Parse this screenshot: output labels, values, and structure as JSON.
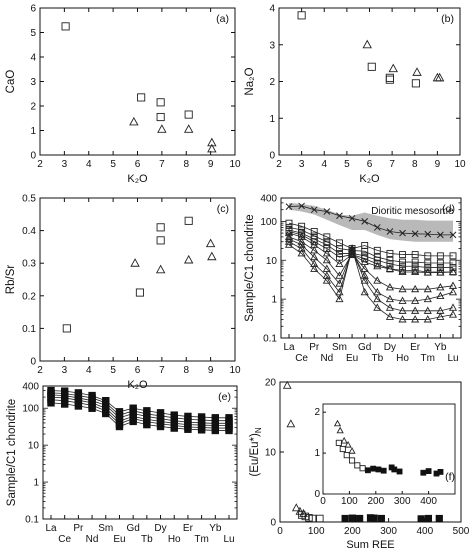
{
  "figure": {
    "title": ""
  },
  "chart_data": [
    {
      "id": "a",
      "type": "scatter",
      "panel_label": "(a)",
      "xlabel": "K₂O",
      "ylabel": "CaO",
      "xlim": [
        2,
        10
      ],
      "ylim": [
        0,
        6
      ],
      "xticks": [
        2,
        3,
        4,
        5,
        6,
        7,
        8,
        9,
        10
      ],
      "yticks": [
        0,
        1,
        2,
        3,
        4,
        5,
        6
      ],
      "series": [
        {
          "marker": "square",
          "points": [
            [
              3.05,
              5.25
            ],
            [
              6.15,
              2.35
            ],
            [
              6.95,
              2.15
            ],
            [
              6.95,
              1.55
            ],
            [
              8.1,
              1.65
            ]
          ]
        },
        {
          "marker": "triangle",
          "points": [
            [
              5.85,
              1.35
            ],
            [
              7.0,
              1.05
            ],
            [
              8.1,
              1.05
            ],
            [
              9.05,
              0.5
            ],
            [
              9.05,
              0.25
            ]
          ]
        }
      ]
    },
    {
      "id": "b",
      "type": "scatter",
      "panel_label": "(b)",
      "xlabel": "K₂O",
      "ylabel": "Na₂O",
      "xlim": [
        2,
        10
      ],
      "ylim": [
        0,
        4
      ],
      "xticks": [
        2,
        3,
        4,
        5,
        6,
        7,
        8,
        9,
        10
      ],
      "yticks": [
        0,
        1,
        2,
        3,
        4
      ],
      "series": [
        {
          "marker": "square",
          "points": [
            [
              3.0,
              3.8
            ],
            [
              6.1,
              2.4
            ],
            [
              6.9,
              2.05
            ],
            [
              6.9,
              2.1
            ],
            [
              8.05,
              1.95
            ]
          ]
        },
        {
          "marker": "triangle",
          "points": [
            [
              5.9,
              3.0
            ],
            [
              7.05,
              2.35
            ],
            [
              8.1,
              2.25
            ],
            [
              9.0,
              2.1
            ],
            [
              9.1,
              2.1
            ]
          ]
        }
      ]
    },
    {
      "id": "c",
      "type": "scatter",
      "panel_label": "(c)",
      "xlabel": "K₂O",
      "ylabel": "Rb/Sr",
      "xlim": [
        2,
        10
      ],
      "ylim": [
        0,
        0.5
      ],
      "xticks": [
        2,
        3,
        4,
        5,
        6,
        7,
        8,
        9,
        10
      ],
      "yticks": [
        0,
        0.1,
        0.2,
        0.3,
        0.4,
        0.5
      ],
      "series": [
        {
          "marker": "square",
          "points": [
            [
              3.1,
              0.1
            ],
            [
              6.1,
              0.21
            ],
            [
              6.95,
              0.41
            ],
            [
              6.95,
              0.37
            ],
            [
              8.1,
              0.43
            ]
          ]
        },
        {
          "marker": "triangle",
          "points": [
            [
              5.9,
              0.3
            ],
            [
              6.95,
              0.28
            ],
            [
              8.1,
              0.31
            ],
            [
              9.0,
              0.36
            ],
            [
              9.05,
              0.32
            ]
          ]
        }
      ]
    },
    {
      "id": "d",
      "type": "line",
      "panel_label": "(d)",
      "ylabel": "Sample/C1 chondrite",
      "yscale": "log",
      "ylim": [
        0.1,
        400
      ],
      "yticks": [
        0.1,
        1,
        10,
        100,
        400
      ],
      "categories": [
        "La",
        "Ce",
        "Pr",
        "Nd",
        "Sm",
        "Eu",
        "Gd",
        "Tb",
        "Dy",
        "Ho",
        "Er",
        "Tm",
        "Yb",
        "Lu"
      ],
      "x_labels_top": [
        "La",
        "Pr",
        "Sm",
        "Gd",
        "Dy",
        "Er",
        "Yb"
      ],
      "x_labels_bottom": [
        "Ce",
        "Nd",
        "Eu",
        "Tb",
        "Ho",
        "Tm",
        "Lu"
      ],
      "annotation": "Dioritic mesosome",
      "band": {
        "upper": [
          300,
          280,
          250,
          200,
          150,
          140,
          170,
          140,
          120,
          110,
          110,
          105,
          105,
          105
        ],
        "lower": [
          200,
          180,
          150,
          110,
          80,
          60,
          60,
          45,
          35,
          32,
          30,
          30,
          30,
          30
        ]
      },
      "series": [
        {
          "marker": "cross",
          "values": [
            240,
            250,
            200,
            180,
            140,
            120,
            100,
            70,
            55,
            50,
            48,
            47,
            45,
            45
          ]
        },
        {
          "marker": "square",
          "values": [
            90,
            75,
            55,
            40,
            28,
            20,
            24,
            18,
            15,
            14,
            14,
            13,
            13,
            13
          ]
        },
        {
          "marker": "square",
          "values": [
            70,
            60,
            42,
            30,
            20,
            18,
            17,
            12,
            10,
            9,
            9,
            8.5,
            8.5,
            8.5
          ]
        },
        {
          "marker": "square",
          "values": [
            60,
            50,
            35,
            25,
            15,
            15,
            13,
            10,
            8,
            7,
            7,
            6.5,
            6.5,
            6.5
          ]
        },
        {
          "marker": "square",
          "values": [
            55,
            45,
            30,
            20,
            12,
            14,
            11,
            8,
            6,
            5.5,
            5.5,
            5,
            5,
            5
          ]
        },
        {
          "marker": "triangle",
          "values": [
            50,
            40,
            25,
            15,
            8,
            14,
            9,
            7,
            6,
            5,
            5,
            4.8,
            4.8,
            5
          ]
        },
        {
          "marker": "triangle",
          "values": [
            40,
            30,
            18,
            10,
            4,
            15,
            6,
            3,
            2,
            1.8,
            1.8,
            1.8,
            2,
            2.2
          ]
        },
        {
          "marker": "triangle",
          "values": [
            35,
            25,
            12,
            6,
            2.5,
            17,
            4,
            1.5,
            1,
            0.9,
            0.9,
            1,
            1.2,
            1.5
          ]
        },
        {
          "marker": "triangle",
          "values": [
            30,
            20,
            8,
            4,
            1.5,
            18,
            3,
            1,
            0.6,
            0.5,
            0.5,
            0.5,
            0.5,
            0.6
          ]
        },
        {
          "marker": "triangle",
          "values": [
            25,
            15,
            6,
            3,
            1,
            20,
            1.5,
            0.6,
            0.35,
            0.3,
            0.3,
            0.3,
            0.35,
            0.4
          ]
        }
      ]
    },
    {
      "id": "e",
      "type": "line",
      "panel_label": "(e)",
      "ylabel": "Sample/C1 chondrite",
      "yscale": "log",
      "ylim": [
        0.1,
        400
      ],
      "yticks": [
        0.1,
        1,
        10,
        100,
        400
      ],
      "categories": [
        "La",
        "Ce",
        "Pr",
        "Nd",
        "Sm",
        "Eu",
        "Gd",
        "Tb",
        "Dy",
        "Ho",
        "Er",
        "Tm",
        "Yb",
        "Lu"
      ],
      "x_labels_top": [
        "La",
        "Pr",
        "Sm",
        "Gd",
        "Dy",
        "Er",
        "Yb"
      ],
      "x_labels_bottom": [
        "Ce",
        "Nd",
        "Eu",
        "Tb",
        "Ho",
        "Tm",
        "Lu"
      ],
      "series": [
        {
          "marker": "filled-square",
          "values": [
            300,
            290,
            260,
            220,
            160,
            80,
            100,
            85,
            75,
            65,
            60,
            58,
            55,
            55
          ]
        },
        {
          "marker": "filled-square",
          "values": [
            260,
            250,
            220,
            190,
            140,
            65,
            85,
            70,
            62,
            55,
            50,
            48,
            46,
            46
          ]
        },
        {
          "marker": "filled-square",
          "values": [
            230,
            220,
            190,
            160,
            120,
            55,
            72,
            60,
            52,
            46,
            42,
            40,
            39,
            39
          ]
        },
        {
          "marker": "filled-square",
          "values": [
            200,
            190,
            165,
            140,
            100,
            45,
            60,
            50,
            44,
            39,
            36,
            35,
            34,
            34
          ]
        },
        {
          "marker": "filled-square",
          "values": [
            170,
            160,
            140,
            120,
            85,
            38,
            52,
            43,
            38,
            34,
            31,
            30,
            29,
            29
          ]
        },
        {
          "marker": "filled-square",
          "values": [
            140,
            130,
            115,
            100,
            72,
            32,
            44,
            36,
            32,
            29,
            27,
            26,
            25,
            25
          ]
        }
      ]
    },
    {
      "id": "f",
      "type": "scatter",
      "panel_label": "(f)",
      "xlabel": "Sum REE",
      "ylabel": "(Eu/Eu*)N",
      "ylabel_main": "(Eu/Eu*)",
      "ylabel_sub": "N",
      "xlim": [
        0,
        500
      ],
      "ylim": [
        0,
        20
      ],
      "xticks": [
        0,
        100,
        200,
        300,
        400,
        500
      ],
      "yticks": [
        0,
        10,
        20
      ],
      "series": [
        {
          "marker": "triangle",
          "points": [
            [
              20,
              19.5
            ],
            [
              30,
              14
            ],
            [
              45,
              2
            ],
            [
              55,
              1.5
            ],
            [
              65,
              1.2
            ]
          ]
        },
        {
          "marker": "square",
          "points": [
            [
              60,
              1.0
            ],
            [
              70,
              0.8
            ],
            [
              80,
              0.6
            ],
            [
              90,
              0.5
            ],
            [
              110,
              0.5
            ]
          ]
        },
        {
          "marker": "filled-square",
          "points": [
            [
              180,
              0.5
            ],
            [
              200,
              0.55
            ],
            [
              220,
              0.5
            ],
            [
              250,
              0.6
            ],
            [
              260,
              0.55
            ],
            [
              280,
              0.5
            ],
            [
              390,
              0.45
            ],
            [
              410,
              0.5
            ],
            [
              440,
              0.5
            ]
          ]
        }
      ],
      "inset": {
        "xlim": [
          0,
          500
        ],
        "ylim": [
          0,
          2.2
        ],
        "xticks": [
          0,
          100,
          200,
          300,
          400
        ],
        "yticks": [
          0,
          1,
          2
        ],
        "series": [
          {
            "marker": "triangle",
            "points": [
              [
                55,
                1.72
              ],
              [
                65,
                1.55
              ],
              [
                80,
                1.3
              ],
              [
                95,
                1.2
              ],
              [
                110,
                1.05
              ]
            ]
          },
          {
            "marker": "square",
            "points": [
              [
                60,
                1.25
              ],
              [
                75,
                1.1
              ],
              [
                90,
                0.95
              ],
              [
                110,
                0.82
              ],
              [
                130,
                0.7
              ],
              [
                150,
                0.63
              ]
            ]
          },
          {
            "marker": "filled-square",
            "points": [
              [
                170,
                0.58
              ],
              [
                190,
                0.62
              ],
              [
                210,
                0.6
              ],
              [
                230,
                0.57
              ],
              [
                260,
                0.65
              ],
              [
                270,
                0.6
              ],
              [
                290,
                0.55
              ],
              [
                380,
                0.52
              ],
              [
                400,
                0.56
              ],
              [
                430,
                0.5
              ],
              [
                445,
                0.54
              ]
            ]
          }
        ]
      }
    }
  ]
}
